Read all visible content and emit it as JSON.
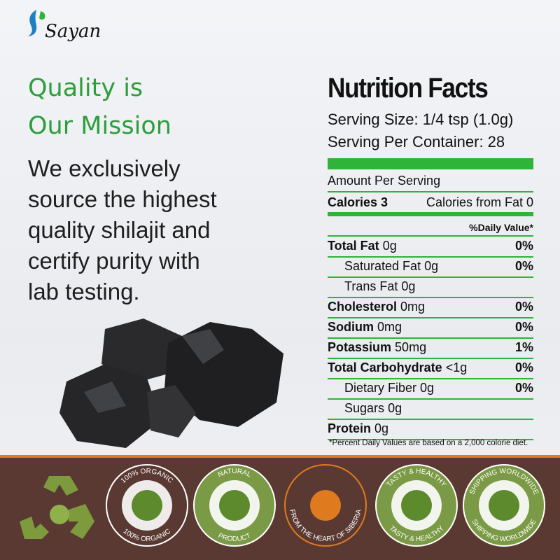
{
  "brand": {
    "name": "Sayan"
  },
  "headline": {
    "lines": [
      "Quality is",
      "Our Mission"
    ]
  },
  "body": {
    "lines": [
      "We exclusively",
      "source the highest",
      "quality shilajit and",
      "certify purity with",
      "lab testing."
    ]
  },
  "nutrition": {
    "title": "Nutrition Facts",
    "serving_size": "Serving Size: 1/4 tsp (1.0g)",
    "servings": "Serving Per Container: 28",
    "amount_per_serving": "Amount Per Serving",
    "calories": "Calories 3",
    "calories_from_fat": "Calories from Fat 0",
    "daily_value_header": "%Daily Value*",
    "nutrients": [
      {
        "name": "Total Fat",
        "amount": "0g",
        "dv": "0%",
        "sub": [
          {
            "name": "Saturated Fat",
            "amount": "0g",
            "dv": "0%"
          },
          {
            "name": "Trans Fat",
            "amount": "0g"
          }
        ]
      },
      {
        "name": "Cholesterol",
        "amount": "0mg",
        "dv": "0%"
      },
      {
        "name": "Sodium",
        "amount": "0mg",
        "dv": "0%"
      },
      {
        "name": "Potassium",
        "amount": "50mg",
        "dv": "1%"
      },
      {
        "name": "Total Carbohydrate",
        "amount": "<1g",
        "dv": "0%",
        "sub": [
          {
            "name": "Dietary Fiber",
            "amount": "0g",
            "dv": "0%"
          },
          {
            "name": "Sugars",
            "amount": "0g"
          }
        ]
      },
      {
        "name": "Protein",
        "amount": "0g"
      }
    ],
    "footnote": "*Percent Daily Values are based on a 2,000 colorie diet."
  },
  "badges": [
    {
      "top": "100% ORGANIC",
      "bottom": "100% ORGANIC"
    },
    {
      "top": "NATURAL",
      "bottom": "PRODUCT"
    },
    {
      "bottom": "FROM THE HEART OF SIBERIA"
    },
    {
      "top": "TASTY & HEALTHY",
      "bottom": "TASTY & HEALTHY"
    },
    {
      "top": "SHIPPING WORLDWIDE",
      "bottom": "SHIPPING WORLDWIDE"
    }
  ]
}
